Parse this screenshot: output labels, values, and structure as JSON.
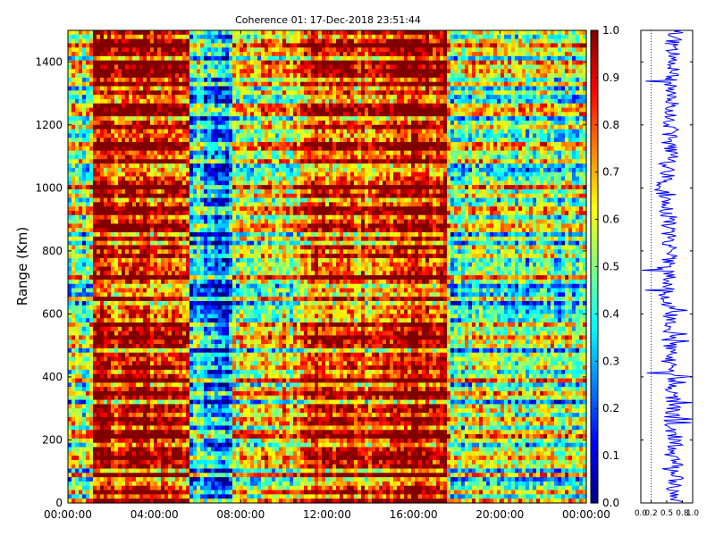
{
  "chart_data": [
    {
      "type": "heatmap",
      "title": "Coherence 01: 17-Dec-2018 23:51:44",
      "xlabel": "",
      "ylabel": "Range (Km)",
      "x_tick_labels": [
        "00:00:00",
        "04:00:00",
        "08:00:00",
        "12:00:00",
        "16:00:00",
        "20:00:00",
        "00:00:00"
      ],
      "x_ticks_hours": [
        0,
        4,
        8,
        12,
        16,
        20,
        24
      ],
      "xlim_hours": [
        0,
        24
      ],
      "y_ticks": [
        0,
        200,
        400,
        600,
        800,
        1000,
        1200,
        1400
      ],
      "y_tick_labels": [
        "0",
        "200",
        "400",
        "600",
        "800",
        "1000",
        "1200",
        "1400"
      ],
      "ylim": [
        0,
        1500
      ],
      "colormap": "jet",
      "colorbar": {
        "range": [
          0.0,
          1.0
        ],
        "ticks": [
          0.0,
          0.1,
          0.2,
          0.3,
          0.4,
          0.5,
          0.6,
          0.7,
          0.8,
          0.9,
          1.0
        ],
        "tick_labels": [
          "0.0",
          "0.1",
          "0.2",
          "0.3",
          "0.4",
          "0.5",
          "0.6",
          "0.7",
          "0.8",
          "0.9",
          "1.0"
        ]
      },
      "regions": [
        {
          "hours": [
            0.0,
            1.2
          ],
          "level": 0.55
        },
        {
          "hours": [
            1.2,
            5.6
          ],
          "level": 0.88
        },
        {
          "hours": [
            5.6,
            6.3
          ],
          "level": 0.38
        },
        {
          "hours": [
            6.3,
            7.6
          ],
          "level": 0.25
        },
        {
          "hours": [
            7.6,
            11.0
          ],
          "level": 0.62
        },
        {
          "hours": [
            11.0,
            15.0
          ],
          "level": 0.82
        },
        {
          "hours": [
            15.0,
            17.5
          ],
          "level": 0.9
        },
        {
          "hours": [
            17.5,
            24.0
          ],
          "level": 0.5
        }
      ]
    },
    {
      "type": "line",
      "title": "",
      "x_tick_labels": [
        "0.0",
        "0.2",
        "0.5",
        "0.8",
        "1.0"
      ],
      "x_ticks": [
        0.0,
        0.2,
        0.5,
        0.8,
        1.0
      ],
      "xlim": [
        0,
        1
      ],
      "ylim": [
        0,
        1500
      ],
      "y_ticks": [
        0,
        200,
        400,
        600,
        800,
        1000,
        1200,
        1400
      ],
      "reference_line_x": 0.2,
      "series_color": "#0000ff",
      "profile_knots": [
        {
          "range": 0,
          "value": 0.72
        },
        {
          "range": 50,
          "value": 0.62
        },
        {
          "range": 100,
          "value": 0.7
        },
        {
          "range": 150,
          "value": 0.6
        },
        {
          "range": 200,
          "value": 0.68
        },
        {
          "range": 250,
          "value": 0.58
        },
        {
          "range": 300,
          "value": 0.62
        },
        {
          "range": 350,
          "value": 0.55
        },
        {
          "range": 400,
          "value": 0.6
        },
        {
          "range": 450,
          "value": 0.52
        },
        {
          "range": 500,
          "value": 0.58
        },
        {
          "range": 550,
          "value": 0.5
        },
        {
          "range": 600,
          "value": 0.56
        },
        {
          "range": 650,
          "value": 0.48
        },
        {
          "range": 700,
          "value": 0.52
        },
        {
          "range": 750,
          "value": 0.5
        },
        {
          "range": 800,
          "value": 0.58
        },
        {
          "range": 850,
          "value": 0.52
        },
        {
          "range": 900,
          "value": 0.56
        },
        {
          "range": 950,
          "value": 0.45
        },
        {
          "range": 1000,
          "value": 0.4
        },
        {
          "range": 1050,
          "value": 0.52
        },
        {
          "range": 1100,
          "value": 0.58
        },
        {
          "range": 1150,
          "value": 0.55
        },
        {
          "range": 1200,
          "value": 0.6
        },
        {
          "range": 1250,
          "value": 0.56
        },
        {
          "range": 1300,
          "value": 0.62
        },
        {
          "range": 1350,
          "value": 0.6
        },
        {
          "range": 1400,
          "value": 0.65
        },
        {
          "range": 1450,
          "value": 0.6
        },
        {
          "range": 1500,
          "value": 0.68
        }
      ]
    }
  ]
}
